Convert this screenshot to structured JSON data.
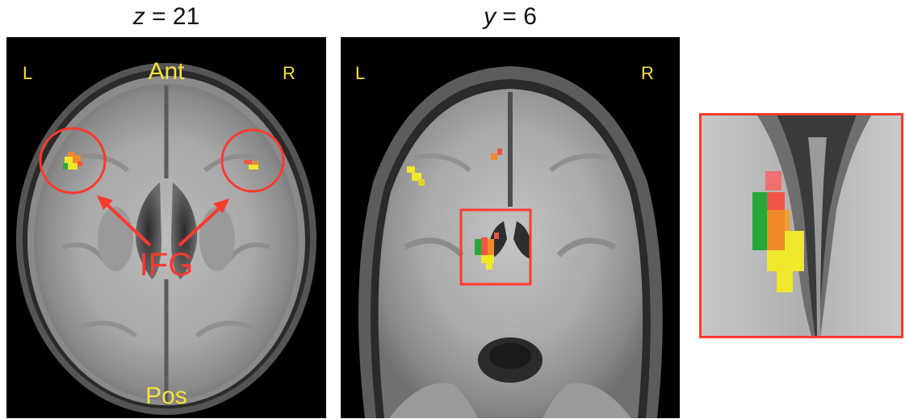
{
  "panels": {
    "axial": {
      "title_var": "z",
      "title_rest": " = 21",
      "left_label": "L",
      "right_label": "R",
      "anterior_label": "Ant",
      "posterior_label": "Pos",
      "region_label": "IFG"
    },
    "coronal": {
      "title_var": "y",
      "title_rest": " = 6",
      "left_label": "L",
      "right_label": "R"
    }
  },
  "colors": {
    "label_yellow": "#f5e23a",
    "annotation_red": "#ff3a2e",
    "activation_red": "#f05545",
    "activation_orange": "#f08a2a",
    "activation_yellow": "#f0e82a",
    "activation_green": "#28a83a"
  }
}
